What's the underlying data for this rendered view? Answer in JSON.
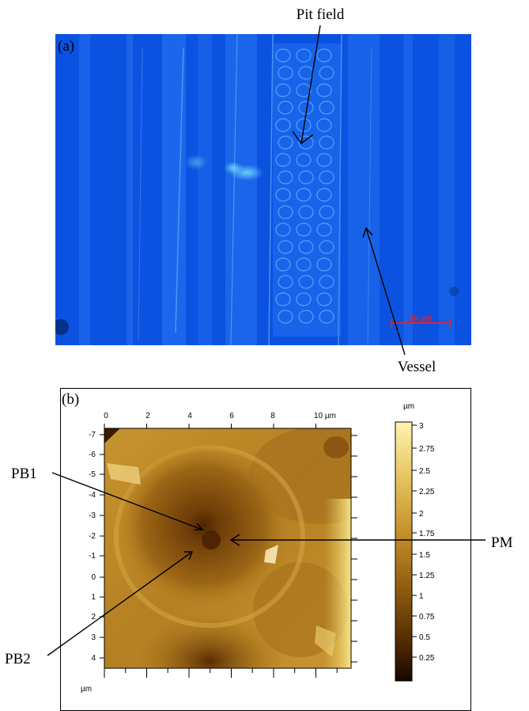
{
  "panel_a": {
    "label": "(a)",
    "annotations": {
      "pit_field": "Pit field",
      "vessel": "Vessel"
    },
    "scale_bar": "20 µm",
    "colors": {
      "background": "#0b52e0",
      "scale_bar": "#e0222a"
    }
  },
  "panel_b": {
    "label": "(b)",
    "annotations": {
      "pb1": "PB1",
      "pb2": "PB2",
      "pm": "PM"
    },
    "x_ticks": [
      "0",
      "2",
      "4",
      "6",
      "8",
      "10 µm"
    ],
    "y_ticks": [
      "-7",
      "-6",
      "-5",
      "-4",
      "-3",
      "-2",
      "-1",
      "0",
      "1",
      "2",
      "3",
      "4"
    ],
    "x_unit": "µm",
    "colorbar": {
      "unit": "µm",
      "ticks": [
        "3",
        "2.75",
        "2.5",
        "2.25",
        "2",
        "1.75",
        "1.5",
        "1.25",
        "1",
        "0.75",
        "0.5",
        "0.25"
      ]
    },
    "colors": {
      "low": "#2a1200",
      "mid": "#b07a1e",
      "high": "#fff2a8"
    }
  }
}
